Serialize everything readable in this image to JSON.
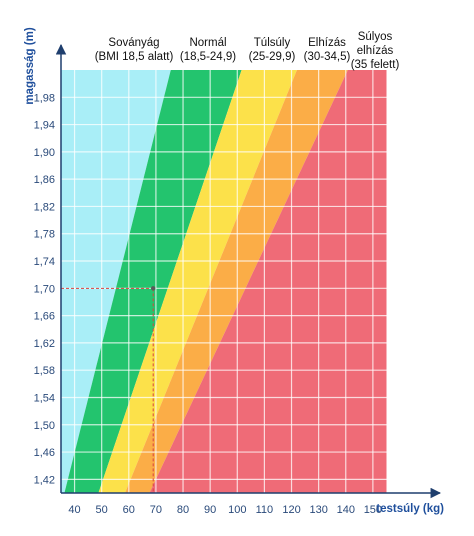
{
  "chart_data": {
    "type": "area",
    "title": "",
    "xlabel": "testsúly (kg)",
    "ylabel": "magasság (m)",
    "xlim": [
      35,
      160
    ],
    "ylim": [
      1.4,
      2.02
    ],
    "x_ticks": [
      40,
      50,
      60,
      70,
      80,
      90,
      100,
      110,
      120,
      130,
      140,
      150
    ],
    "x_tick_labels": [
      "40",
      "50",
      "60",
      "70",
      "80",
      "90",
      "100",
      "110",
      "120",
      "130",
      "140",
      "150"
    ],
    "y_ticks": [
      1.42,
      1.46,
      1.5,
      1.54,
      1.58,
      1.62,
      1.66,
      1.7,
      1.74,
      1.78,
      1.82,
      1.86,
      1.9,
      1.94,
      1.98
    ],
    "y_tick_labels": [
      "1,42",
      "1,46",
      "1,50",
      "1,54",
      "1,58",
      "1,62",
      "1,66",
      "1,70",
      "1,74",
      "1,78",
      "1,82",
      "1,86",
      "1,90",
      "1,94",
      "1,98"
    ],
    "data_extent": {
      "height_min": 1.4,
      "height_max": 2.02,
      "weight_max": 155
    },
    "bands": [
      {
        "lines": [
          "Soványág",
          "(BMI 18,5 alatt)"
        ],
        "bmi_min": 0,
        "bmi_max": 18.5,
        "color": "#a9eef7"
      },
      {
        "lines": [
          "Normál",
          "(18,5-24,9)"
        ],
        "bmi_min": 18.5,
        "bmi_max": 24.9,
        "color": "#23c46e"
      },
      {
        "lines": [
          "Túlsúly",
          "(25-29,9)"
        ],
        "bmi_min": 24.9,
        "bmi_max": 29.9,
        "color": "#fce14a"
      },
      {
        "lines": [
          "Elhízás",
          "(30-34,5)"
        ],
        "bmi_min": 29.9,
        "bmi_max": 34.5,
        "color": "#fbad47"
      },
      {
        "lines": [
          "Súlyos",
          "elhízás",
          "(35 felett)"
        ],
        "bmi_min": 34.5,
        "bmi_max": null,
        "color": "#ef6b77"
      }
    ],
    "marker": {
      "weight": 69,
      "height": 1.7
    },
    "grid": true,
    "grid_color": "#ffffff",
    "axis_color": "#1f3f6e",
    "marker_color": "#d9413f"
  }
}
